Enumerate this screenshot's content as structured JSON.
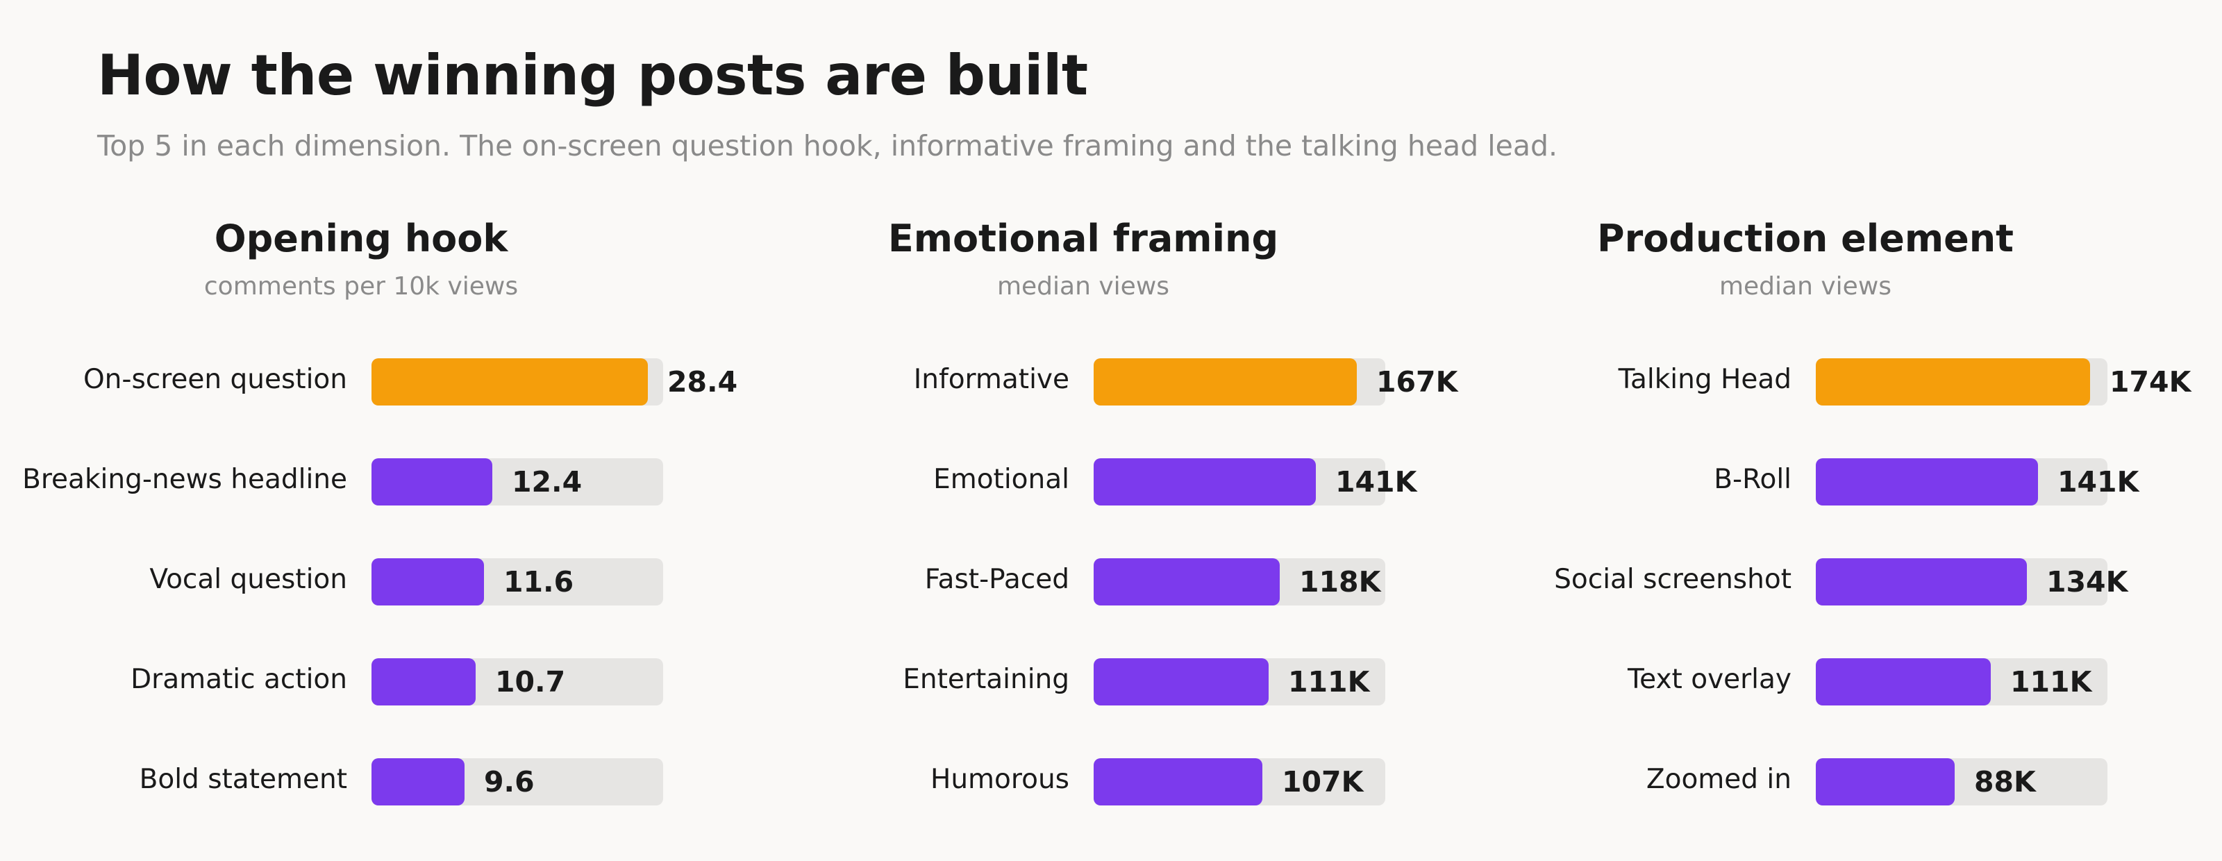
{
  "title": "How the winning posts are built",
  "subtitle": "Top 5 in each dimension. The on-screen question hook, informative framing and the talking head lead.",
  "colors": {
    "highlight": "#f59e0b",
    "default": "#7c3aed",
    "track": "#e6e5e3"
  },
  "chart_data": [
    {
      "type": "bar",
      "orientation": "horizontal",
      "title": "Opening hook",
      "subtitle": "comments per 10k views",
      "categories": [
        "On-screen question",
        "Breaking-news headline",
        "Vocal question",
        "Dramatic action",
        "Bold statement"
      ],
      "values": [
        28.4,
        12.4,
        11.6,
        10.7,
        9.6
      ],
      "value_labels": [
        "28.4",
        "12.4",
        "11.6",
        "10.7",
        "9.6"
      ],
      "xlim": [
        0,
        30
      ]
    },
    {
      "type": "bar",
      "orientation": "horizontal",
      "title": "Emotional framing",
      "subtitle": "median views",
      "categories": [
        "Informative",
        "Emotional",
        "Fast-Paced",
        "Entertaining",
        "Humorous"
      ],
      "values": [
        167000,
        141000,
        118000,
        111000,
        107000
      ],
      "value_labels": [
        "167K",
        "141K",
        "118K",
        "111K",
        "107K"
      ],
      "xlim": [
        0,
        185000
      ]
    },
    {
      "type": "bar",
      "orientation": "horizontal",
      "title": "Production element",
      "subtitle": "median views",
      "categories": [
        "Talking Head",
        "B-Roll",
        "Social screenshot",
        "Text overlay",
        "Zoomed in"
      ],
      "values": [
        174000,
        141000,
        134000,
        111000,
        88000
      ],
      "value_labels": [
        "174K",
        "141K",
        "134K",
        "111K",
        "88K"
      ],
      "xlim": [
        0,
        185000
      ]
    }
  ]
}
